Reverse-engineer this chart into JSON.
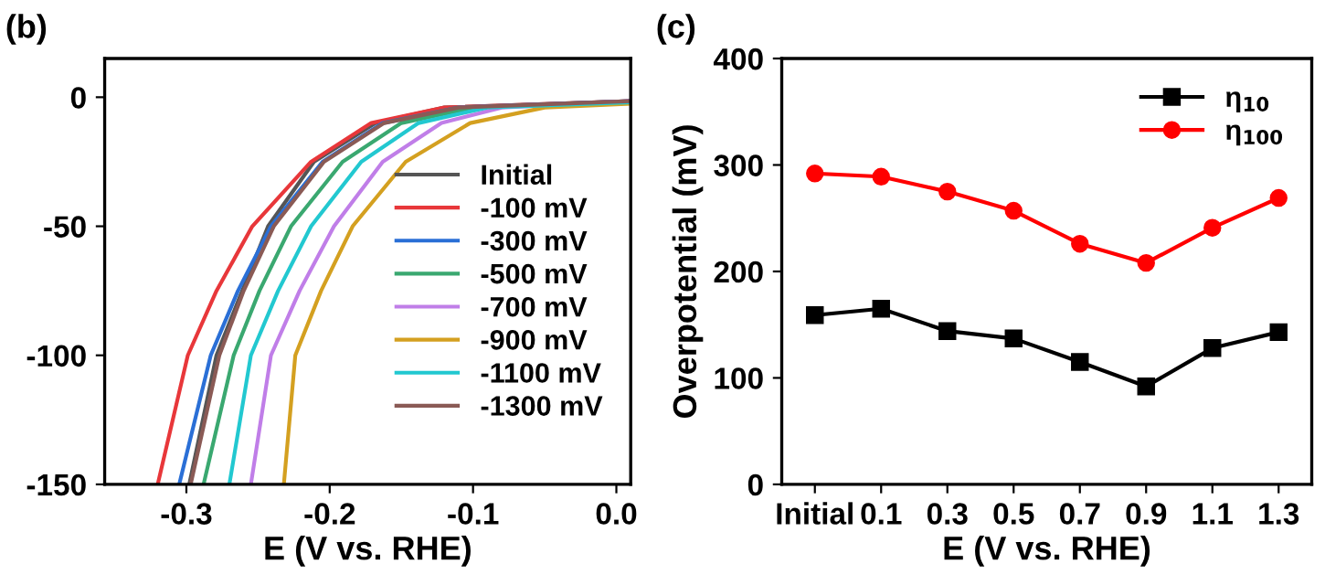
{
  "chart_data": [
    {
      "type": "line",
      "xlabel": "E (V vs. RHE)",
      "annotations": [
        "(b)"
      ],
      "xlim": [
        -0.357,
        0.01
      ],
      "ylim": [
        -150,
        15
      ],
      "xticks": [
        -0.3,
        -0.2,
        -0.1,
        {
          "value": 0,
          "label": "0.0"
        }
      ],
      "yticks": [
        -150,
        -100,
        -50,
        0
      ],
      "grid": false,
      "legend": "right",
      "marker": "none",
      "line_style": "solid",
      "series": [
        {
          "name": "Initial",
          "color": "#555555",
          "x": [
            -0.298,
            -0.279,
            -0.261,
            -0.243,
            -0.211,
            -0.168,
            -0.12,
            0.01
          ],
          "values": [
            -150,
            -100,
            -75,
            -50,
            -25,
            -10,
            -4,
            -1.5
          ]
        },
        {
          "name": "-100 mV",
          "color": "#e8373a",
          "x": [
            -0.32,
            -0.299,
            -0.279,
            -0.254,
            -0.213,
            -0.171,
            -0.12,
            0.01
          ],
          "values": [
            -150,
            -100,
            -75,
            -50,
            -25,
            -10,
            -4,
            -1.5
          ]
        },
        {
          "name": "-300 mV",
          "color": "#2a6fd6",
          "x": [
            -0.305,
            -0.283,
            -0.264,
            -0.241,
            -0.205,
            -0.163,
            -0.11,
            0.01
          ],
          "values": [
            -150,
            -100,
            -75,
            -50,
            -25,
            -10,
            -4,
            -1.5
          ]
        },
        {
          "name": "-500 mV",
          "color": "#3aa870",
          "x": [
            -0.288,
            -0.267,
            -0.249,
            -0.227,
            -0.191,
            -0.15,
            -0.1,
            0.01
          ],
          "values": [
            -150,
            -100,
            -75,
            -50,
            -25,
            -10,
            -4,
            -2
          ]
        },
        {
          "name": "-700 mV",
          "color": "#c07ee8",
          "x": [
            -0.255,
            -0.241,
            -0.221,
            -0.197,
            -0.163,
            -0.122,
            -0.08,
            0.01
          ],
          "values": [
            -150,
            -100,
            -75,
            -50,
            -25,
            -10,
            -4,
            -1.5
          ]
        },
        {
          "name": "-900 mV",
          "color": "#d4a020",
          "x": [
            -0.232,
            -0.224,
            -0.206,
            -0.184,
            -0.147,
            -0.102,
            -0.05,
            0.01
          ],
          "values": [
            -150,
            -100,
            -75,
            -50,
            -25,
            -10,
            -4,
            -2.5
          ]
        },
        {
          "name": "-1100 mV",
          "color": "#22c8d0",
          "x": [
            -0.27,
            -0.255,
            -0.236,
            -0.213,
            -0.178,
            -0.138,
            -0.09,
            0.01
          ],
          "values": [
            -150,
            -100,
            -75,
            -50,
            -25,
            -10,
            -4,
            -2
          ]
        },
        {
          "name": "-1300 mV",
          "color": "#8a5a55",
          "x": [
            -0.297,
            -0.277,
            -0.26,
            -0.239,
            -0.204,
            -0.162,
            -0.11,
            0.01
          ],
          "values": [
            -150,
            -100,
            -75,
            -50,
            -25,
            -10,
            -4,
            -1.5
          ]
        }
      ]
    },
    {
      "type": "line",
      "xlabel": "E (V vs. RHE)",
      "ylabel": "Overpotential (mV)",
      "annotations": [
        "(c)"
      ],
      "categories": [
        "Initial",
        "0.1",
        "0.3",
        "0.5",
        "0.7",
        "0.9",
        "1.1",
        "1.3"
      ],
      "ylim": [
        0,
        400
      ],
      "yticks": [
        0,
        100,
        200,
        300,
        400
      ],
      "grid": false,
      "legend": "top right",
      "line_style": "solid",
      "series": [
        {
          "name": "η$_{10}$",
          "color": "#000000",
          "marker": "square",
          "values": [
            159,
            165,
            144,
            137,
            115,
            92,
            128,
            143
          ]
        },
        {
          "name": "η$_{100}$",
          "color": "#ff0000",
          "marker": "circle",
          "values": [
            292,
            289,
            275,
            257,
            226,
            208,
            241,
            269
          ]
        }
      ]
    }
  ]
}
